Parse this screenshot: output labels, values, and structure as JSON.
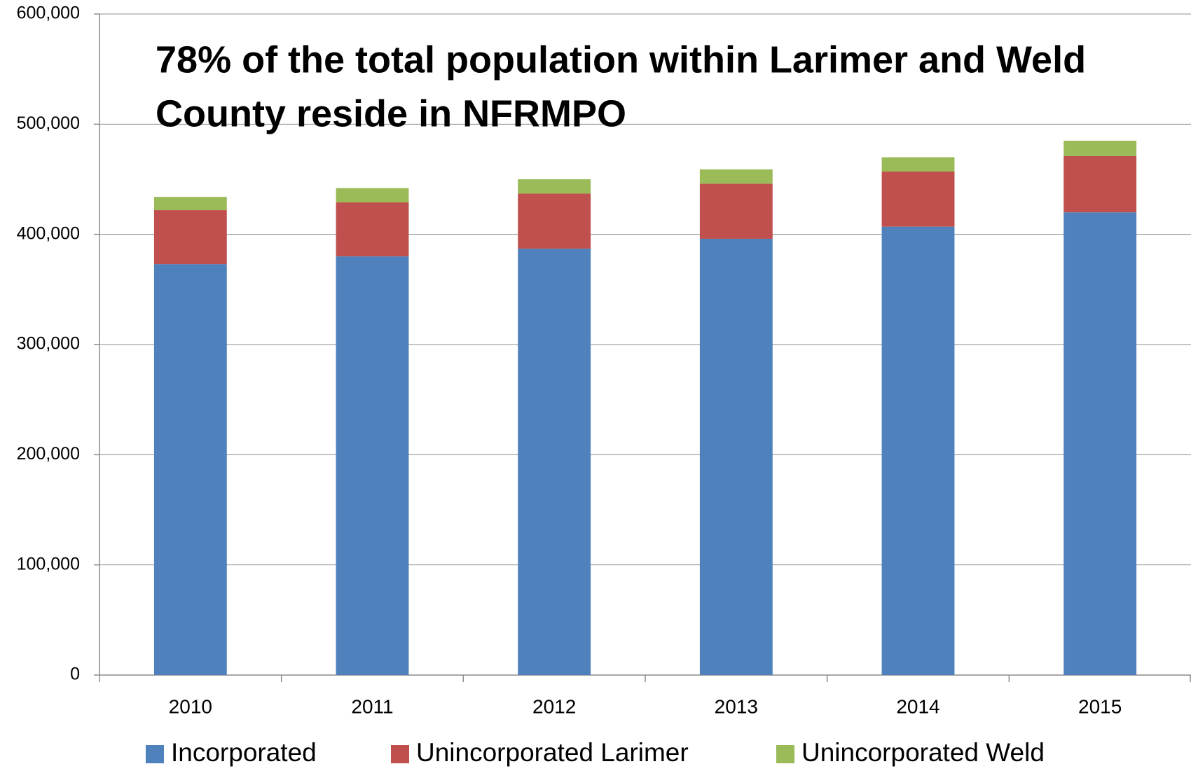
{
  "chart_data": {
    "type": "stacked_bar",
    "annotation": [
      "78% of the total population within Larimer and Weld",
      "County reside in NFRMPO"
    ],
    "categories": [
      "2010",
      "2011",
      "2012",
      "2013",
      "2014",
      "2015"
    ],
    "series": [
      {
        "name": "Incorporated",
        "color": "#4f81bd",
        "values": [
          373000,
          380000,
          387000,
          396000,
          407000,
          420000
        ]
      },
      {
        "name": "Unincorporated Larimer",
        "color": "#c0504d",
        "values": [
          49000,
          49000,
          50000,
          50000,
          50000,
          51000
        ]
      },
      {
        "name": "Unincorporated Weld",
        "color": "#9bbb59",
        "values": [
          12000,
          13000,
          13000,
          13000,
          13000,
          14000
        ]
      }
    ],
    "ylim": [
      0,
      600000
    ],
    "yticks": [
      0,
      {
        "value": 100000,
        "label": "100,000"
      },
      {
        "value": 200000,
        "label": "200,000"
      },
      {
        "value": 300000,
        "label": "300,000"
      },
      {
        "value": 400000,
        "label": "400,000"
      },
      {
        "value": 500000,
        "label": "500,000"
      },
      {
        "value": 600000,
        "label": "600,000"
      }
    ],
    "grid": true,
    "legend": "bottom"
  }
}
